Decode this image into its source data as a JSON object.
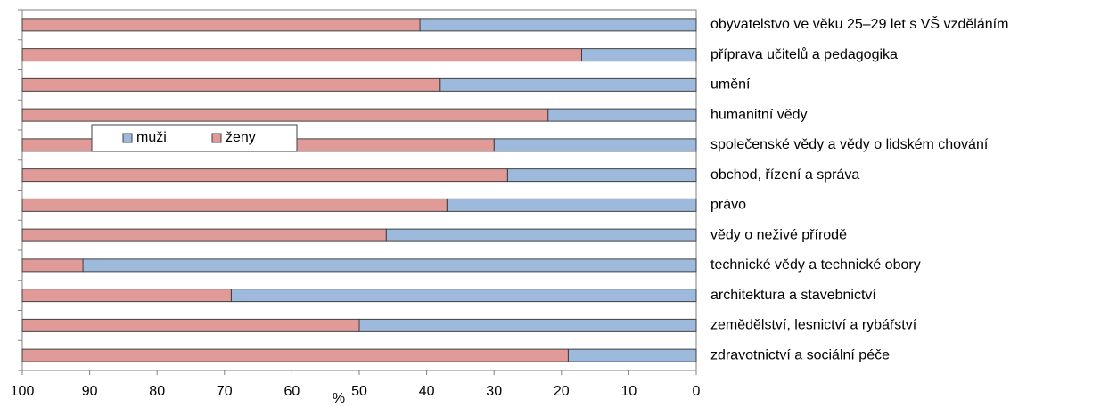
{
  "chart_data": {
    "type": "stacked-barh",
    "categories": [
      "obyvatelstvo ve věku 25–29 let s VŠ vzděláním",
      "příprava učitelů a pedagogika",
      "umění",
      "humanitní vědy",
      "společenské vědy a vědy o lidském chování",
      "obchod, řízení a správa",
      "právo",
      "vědy o neživé přírodě",
      "technické vědy a technické obory",
      "architektura a stavebnictví",
      "zemědělství, lesnictví a rybářství",
      "zdravotnictví a sociální péče"
    ],
    "series": [
      {
        "name": "muži",
        "color": "#9dbadc",
        "values": [
          41,
          17,
          38,
          22,
          30,
          28,
          37,
          46,
          91,
          69,
          50,
          19
        ]
      },
      {
        "name": "ženy",
        "color": "#e09b99",
        "values": [
          59,
          83,
          62,
          78,
          70,
          72,
          63,
          54,
          9,
          31,
          50,
          81
        ]
      }
    ],
    "xlabel": "%",
    "xlim": [
      100,
      0
    ],
    "xticks": [
      100,
      90,
      80,
      70,
      60,
      50,
      40,
      30,
      20,
      10,
      0
    ],
    "legend_position": "upper left"
  }
}
